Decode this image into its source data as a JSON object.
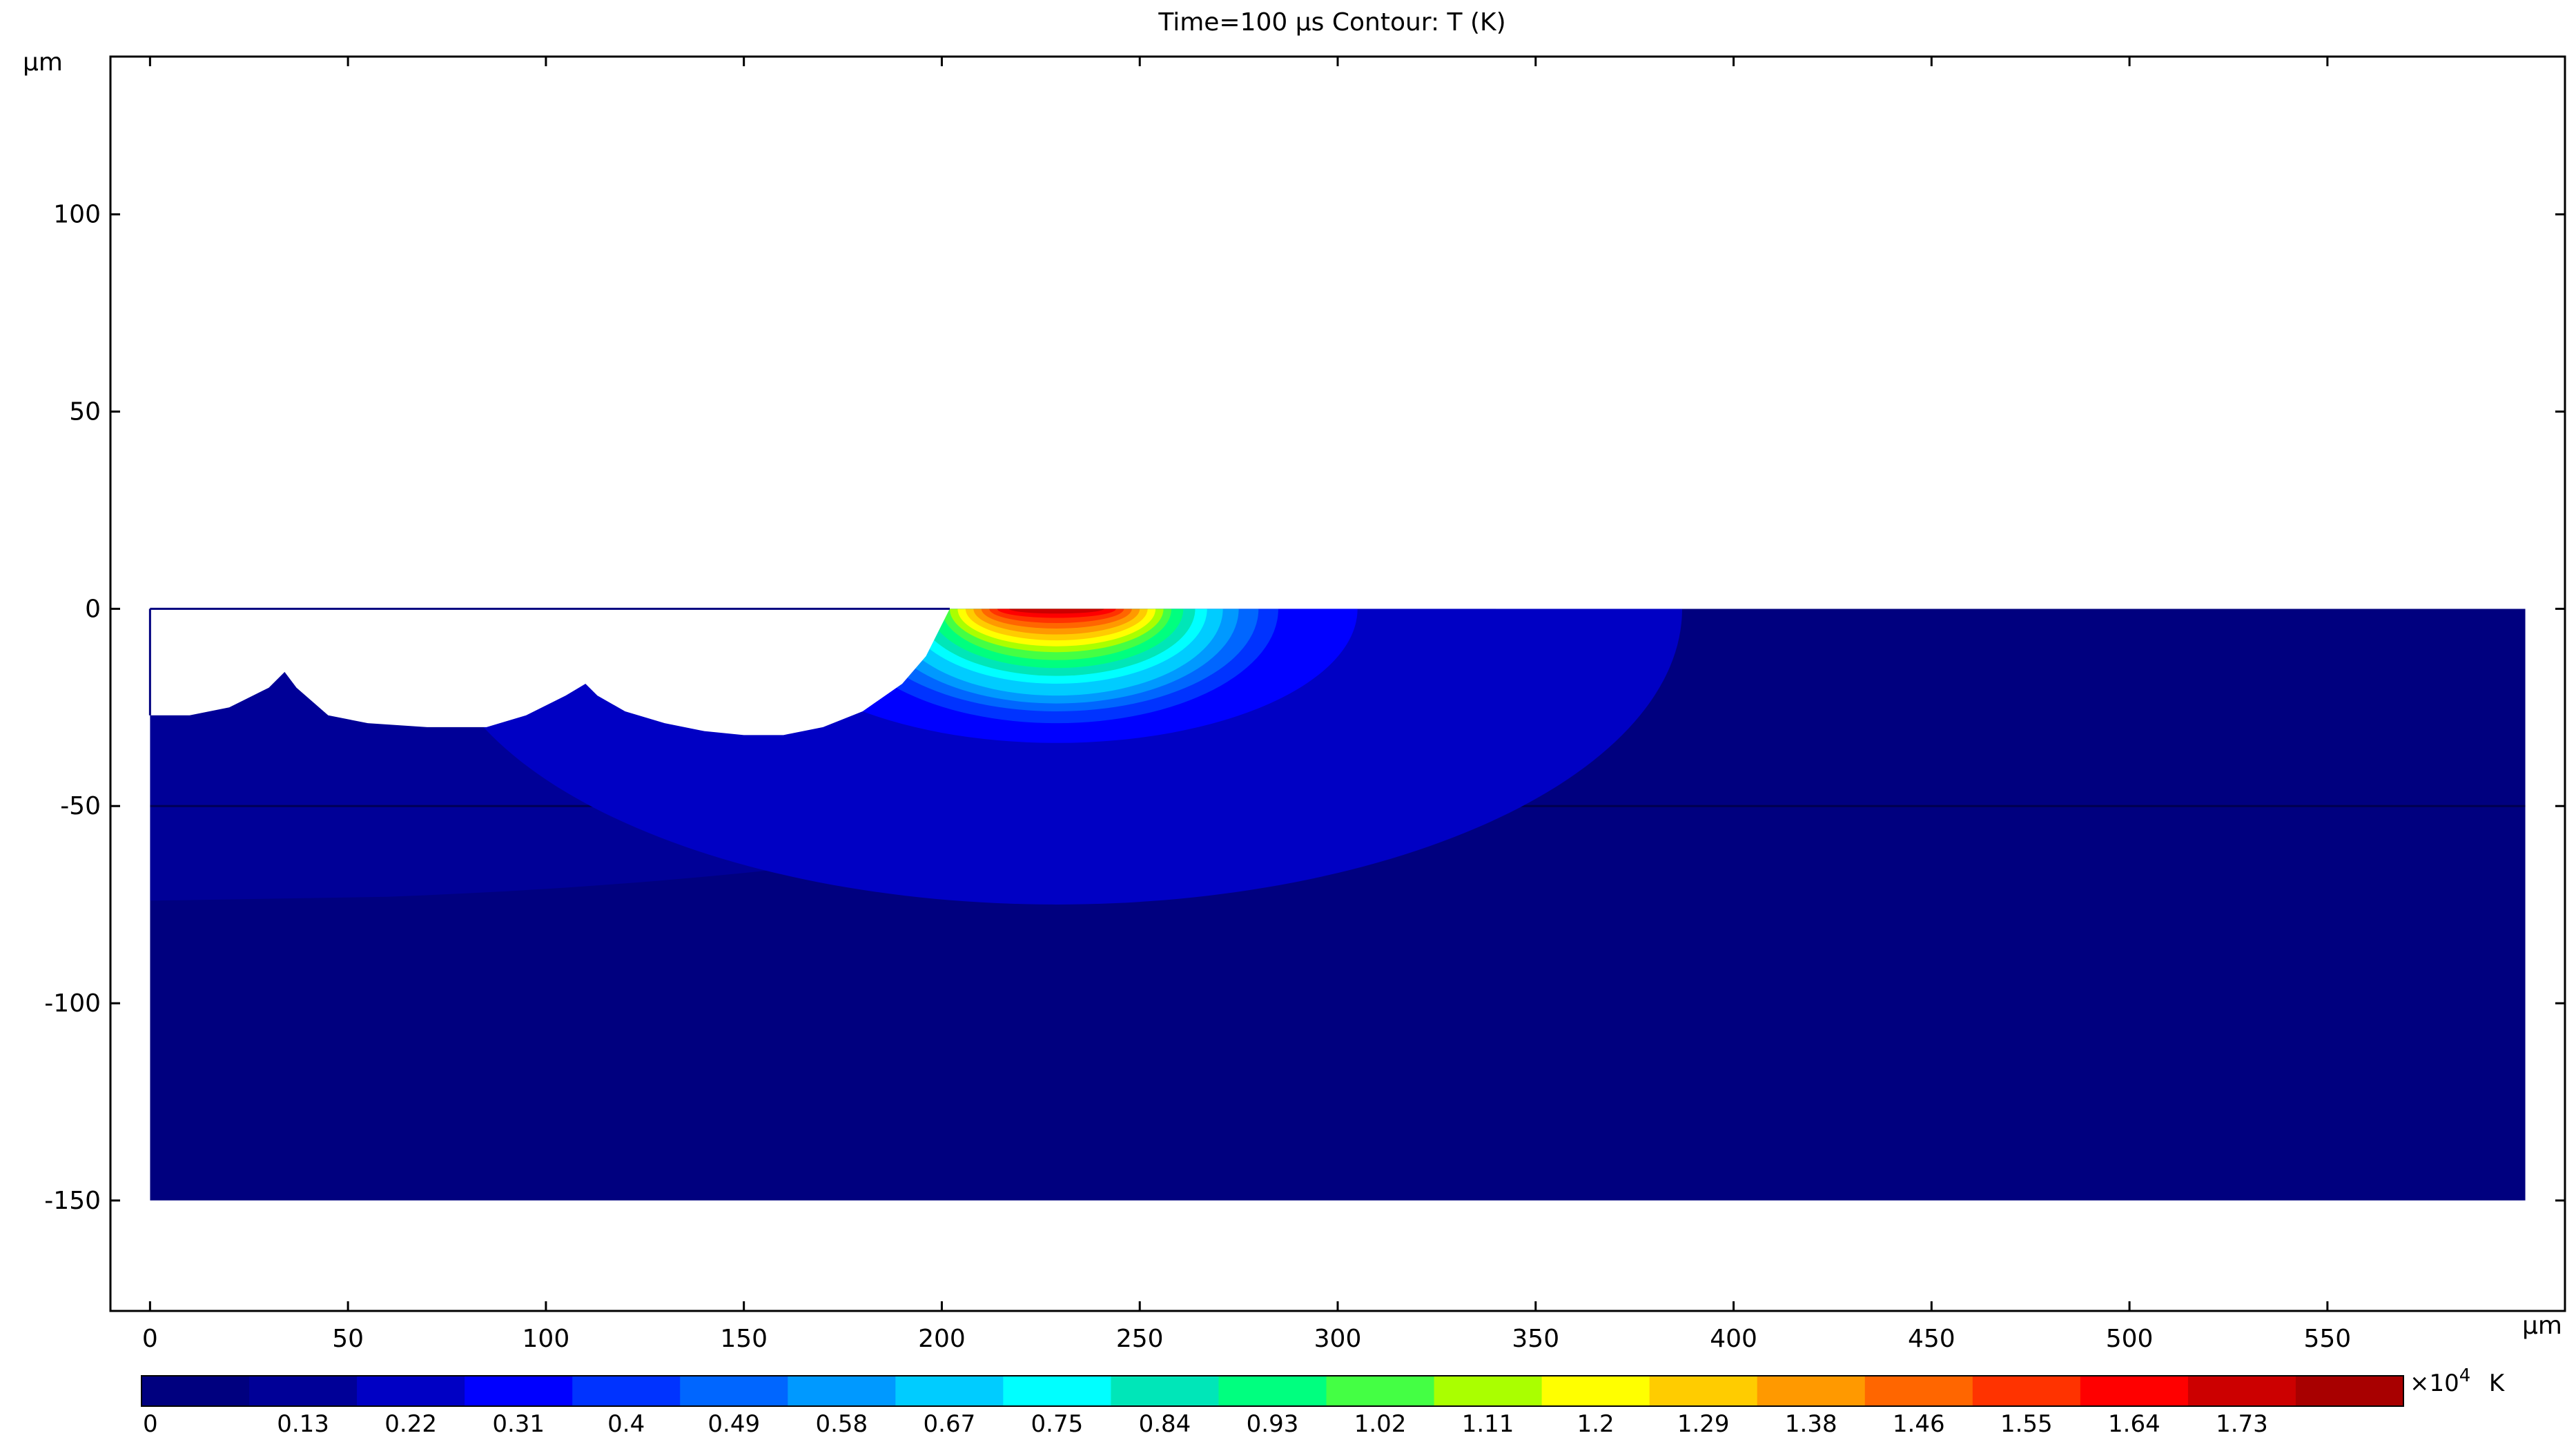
{
  "chart_data": {
    "type": "heatmap",
    "title": "Time=100 µs   Contour: T (K)",
    "xlabel": "µm",
    "ylabel": "µm",
    "xlim": [
      -10,
      610
    ],
    "ylim": [
      -178,
      140
    ],
    "x_ticks": [
      0,
      50,
      100,
      150,
      200,
      250,
      300,
      350,
      400,
      450,
      500,
      550
    ],
    "x_tick_labels": [
      "0",
      "50",
      "100",
      "150",
      "200",
      "250",
      "300",
      "350",
      "400",
      "450",
      "500",
      "550"
    ],
    "y_ticks": [
      100,
      50,
      0,
      -50,
      -100,
      -150
    ],
    "y_tick_labels": [
      "100",
      "50",
      "0",
      "-50",
      "-100",
      "-150"
    ],
    "grid": false,
    "domain": {
      "x": [
        0,
        600
      ],
      "y": [
        -150,
        0
      ]
    },
    "material_interface_depth": -50,
    "removed_region_surface": [
      [
        0,
        -27
      ],
      [
        10,
        -27
      ],
      [
        20,
        -25
      ],
      [
        30,
        -20
      ],
      [
        34,
        -16
      ],
      [
        37,
        -20
      ],
      [
        45,
        -27
      ],
      [
        55,
        -29
      ],
      [
        70,
        -30
      ],
      [
        85,
        -30
      ],
      [
        95,
        -27
      ],
      [
        105,
        -22
      ],
      [
        110,
        -19
      ],
      [
        113,
        -22
      ],
      [
        120,
        -26
      ],
      [
        130,
        -29
      ],
      [
        140,
        -31
      ],
      [
        150,
        -32
      ],
      [
        160,
        -32
      ],
      [
        170,
        -30
      ],
      [
        180,
        -26
      ],
      [
        190,
        -19
      ],
      [
        196,
        -12
      ],
      [
        200,
        -4
      ],
      [
        202,
        0
      ]
    ],
    "hot_spot": {
      "x": 229,
      "y": 0
    },
    "contours": [
      {
        "level": "0.13",
        "rx": 158,
        "ry": 75
      },
      {
        "level": "0.22",
        "rx": 76,
        "ry": 34
      },
      {
        "level": "0.31",
        "rx": 56,
        "ry": 29
      },
      {
        "level": "0.4",
        "rx": 51,
        "ry": 26
      },
      {
        "level": "0.49",
        "rx": 46,
        "ry": 24
      },
      {
        "level": "0.58",
        "rx": 42,
        "ry": 22
      },
      {
        "level": "0.67",
        "rx": 38,
        "ry": 19
      },
      {
        "level": "0.75",
        "rx": 35,
        "ry": 17
      },
      {
        "level": "0.84",
        "rx": 32,
        "ry": 15
      },
      {
        "level": "0.93",
        "rx": 29,
        "ry": 13
      },
      {
        "level": "1.02",
        "rx": 27,
        "ry": 11
      },
      {
        "level": "1.11",
        "rx": 25,
        "ry": 9.5
      },
      {
        "level": "1.2",
        "rx": 23,
        "ry": 8
      },
      {
        "level": "1.29",
        "rx": 21,
        "ry": 6.5
      },
      {
        "level": "1.38",
        "rx": 19,
        "ry": 5
      },
      {
        "level": "1.46",
        "rx": 17,
        "ry": 3.6
      },
      {
        "level": "1.55",
        "rx": 15,
        "ry": 2.3
      },
      {
        "level": "1.64",
        "rx": 12,
        "ry": 1.2
      }
    ],
    "colorbar": {
      "multiplier_label": "×10",
      "multiplier_exponent": "4",
      "unit": "K",
      "tick_labels": [
        "0",
        "0.13",
        "0.22",
        "0.31",
        "0.4",
        "0.49",
        "0.58",
        "0.67",
        "0.75",
        "0.84",
        "0.93",
        "1.02",
        "1.11",
        "1.2",
        "1.29",
        "1.38",
        "1.46",
        "1.55",
        "1.64",
        "1.73"
      ],
      "colors": [
        "#00007f",
        "#000097",
        "#0000c4",
        "#0000ff",
        "#0033ff",
        "#0066ff",
        "#0099ff",
        "#00ccff",
        "#00ffff",
        "#00e6b8",
        "#00ff7f",
        "#44ff44",
        "#aaff00",
        "#ffff00",
        "#ffcc00",
        "#ff9900",
        "#ff6600",
        "#ff3300",
        "#ff0000",
        "#cc0000",
        "#a80000"
      ]
    }
  }
}
